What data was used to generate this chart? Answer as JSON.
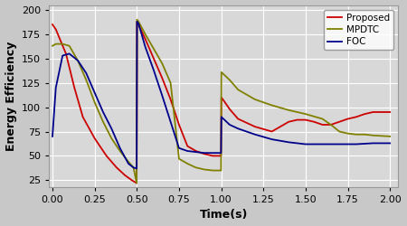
{
  "xlabel": "Time(s)",
  "ylabel": "Energy Efficiency",
  "xlim": [
    -0.02,
    2.05
  ],
  "ylim": [
    18,
    205
  ],
  "yticks": [
    25,
    50,
    75,
    100,
    125,
    150,
    175,
    200
  ],
  "xticks": [
    0.0,
    0.25,
    0.5,
    0.75,
    1.0,
    1.25,
    1.5,
    1.75,
    2.0
  ],
  "background_color": "#c8c8c8",
  "plot_bg_color": "#d8d8d8",
  "grid_color": "#ffffff",
  "proposed": {
    "color": "#cc0000",
    "label": "Proposed",
    "x": [
      0.0,
      0.02,
      0.08,
      0.13,
      0.18,
      0.25,
      0.32,
      0.38,
      0.43,
      0.47,
      0.499,
      0.501,
      0.51,
      0.55,
      0.6,
      0.65,
      0.7,
      0.75,
      0.8,
      0.85,
      0.9,
      0.95,
      0.999,
      1.001,
      1.01,
      1.05,
      1.1,
      1.2,
      1.3,
      1.35,
      1.4,
      1.45,
      1.5,
      1.55,
      1.6,
      1.65,
      1.7,
      1.75,
      1.8,
      1.85,
      1.9,
      2.0
    ],
    "y": [
      185,
      180,
      155,
      120,
      90,
      68,
      50,
      38,
      30,
      25,
      22,
      188,
      185,
      170,
      150,
      130,
      108,
      82,
      60,
      55,
      52,
      50,
      50,
      110,
      108,
      98,
      88,
      80,
      75,
      80,
      85,
      87,
      87,
      85,
      82,
      82,
      85,
      88,
      90,
      93,
      95,
      95
    ]
  },
  "mpdtc": {
    "color": "#808000",
    "label": "MPDTC",
    "x": [
      0.0,
      0.02,
      0.06,
      0.1,
      0.15,
      0.2,
      0.25,
      0.3,
      0.35,
      0.4,
      0.45,
      0.48,
      0.499,
      0.501,
      0.51,
      0.55,
      0.6,
      0.65,
      0.7,
      0.75,
      0.8,
      0.85,
      0.9,
      0.95,
      0.999,
      1.001,
      1.05,
      1.1,
      1.2,
      1.3,
      1.4,
      1.5,
      1.6,
      1.65,
      1.7,
      1.75,
      1.8,
      1.85,
      1.9,
      2.0
    ],
    "y": [
      163,
      165,
      165,
      163,
      148,
      128,
      105,
      85,
      68,
      55,
      44,
      38,
      22,
      190,
      188,
      175,
      160,
      145,
      125,
      47,
      42,
      38,
      36,
      35,
      35,
      136,
      128,
      118,
      108,
      102,
      97,
      93,
      88,
      82,
      75,
      73,
      72,
      72,
      71,
      70
    ]
  },
  "foc": {
    "color": "#00008b",
    "label": "FOC",
    "x": [
      0.0,
      0.02,
      0.06,
      0.1,
      0.15,
      0.2,
      0.25,
      0.3,
      0.35,
      0.4,
      0.45,
      0.48,
      0.499,
      0.501,
      0.51,
      0.55,
      0.6,
      0.65,
      0.7,
      0.75,
      0.8,
      0.85,
      0.9,
      0.95,
      0.999,
      1.001,
      1.05,
      1.1,
      1.2,
      1.3,
      1.4,
      1.5,
      1.6,
      1.7,
      1.8,
      1.9,
      2.0
    ],
    "y": [
      70,
      120,
      153,
      155,
      148,
      135,
      115,
      95,
      78,
      58,
      42,
      38,
      37,
      188,
      186,
      162,
      138,
      112,
      85,
      58,
      55,
      54,
      53,
      53,
      53,
      90,
      82,
      78,
      72,
      67,
      64,
      62,
      62,
      62,
      62,
      63,
      63
    ]
  },
  "linewidth": 1.3,
  "fontsize_ticks": 8,
  "fontsize_label": 9
}
